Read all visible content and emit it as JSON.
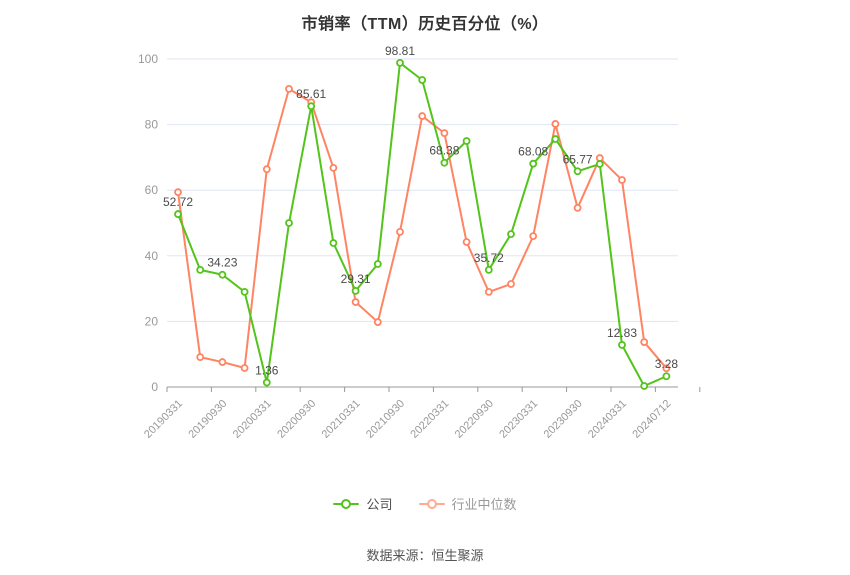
{
  "title": "市销率（TTM）历史百分位（%）",
  "chart_data": {
    "type": "line",
    "title": "市销率（TTM）历史百分位（%）",
    "n_points": 23,
    "x_tick_labels": [
      "20190331",
      "20190930",
      "20200331",
      "20200930",
      "20210331",
      "20210930",
      "20220331",
      "20220930",
      "20230331",
      "20230930",
      "20240331",
      "20240712"
    ],
    "x_tick_point_indices": [
      0,
      2,
      4,
      6,
      8,
      10,
      12,
      14,
      16,
      18,
      20,
      22
    ],
    "y_ticks": [
      0,
      20,
      40,
      60,
      80,
      100
    ],
    "ylim": [
      0,
      100
    ],
    "grid": "horizontal-only",
    "legend_position": "bottom",
    "series": [
      {
        "name": "公司",
        "color": "#52c41a",
        "values": [
          52.72,
          35.7,
          34.23,
          29.0,
          1.36,
          50.0,
          85.61,
          43.9,
          29.31,
          37.5,
          98.81,
          93.6,
          68.38,
          75.0,
          35.72,
          46.6,
          68.08,
          75.6,
          65.77,
          68.0,
          12.83,
          0.3,
          3.28
        ],
        "point_labels": [
          {
            "index": 0,
            "text": "52.72"
          },
          {
            "index": 2,
            "text": "34.23"
          },
          {
            "index": 4,
            "text": "1.36"
          },
          {
            "index": 6,
            "text": "85.61"
          },
          {
            "index": 8,
            "text": "29.31"
          },
          {
            "index": 10,
            "text": "98.81"
          },
          {
            "index": 12,
            "text": "68.38"
          },
          {
            "index": 14,
            "text": "35.72"
          },
          {
            "index": 16,
            "text": "68.08"
          },
          {
            "index": 18,
            "text": "65.77"
          },
          {
            "index": 20,
            "text": "12.83"
          },
          {
            "index": 22,
            "text": "3.28"
          }
        ]
      },
      {
        "name": "行业中位数",
        "color": "#ff8462",
        "values": [
          59.4,
          9.1,
          7.6,
          5.8,
          66.4,
          90.9,
          86.8,
          66.8,
          25.9,
          19.8,
          47.3,
          82.6,
          77.4,
          44.2,
          29.0,
          31.4,
          46.0,
          80.2,
          54.6,
          69.8,
          63.1,
          13.7,
          5.7
        ],
        "point_labels": []
      }
    ]
  },
  "legend": {
    "items": [
      {
        "label": "公司",
        "marker_color": "#52c41a",
        "text_color": "#4d4d4d"
      },
      {
        "label": "行业中位数",
        "marker_color": "#ffab92",
        "text_color": "#999999"
      }
    ]
  },
  "footer": {
    "source_text": "数据来源：恒生聚源"
  },
  "style_colors": {
    "company_line": "#52c41a",
    "industry_line": "#ff8462",
    "grid_line": "#dfe6f2",
    "axis_line": "#999999",
    "axis_text": "#999999",
    "data_label_text": "#4a4a4a",
    "title_text": "#333333"
  }
}
